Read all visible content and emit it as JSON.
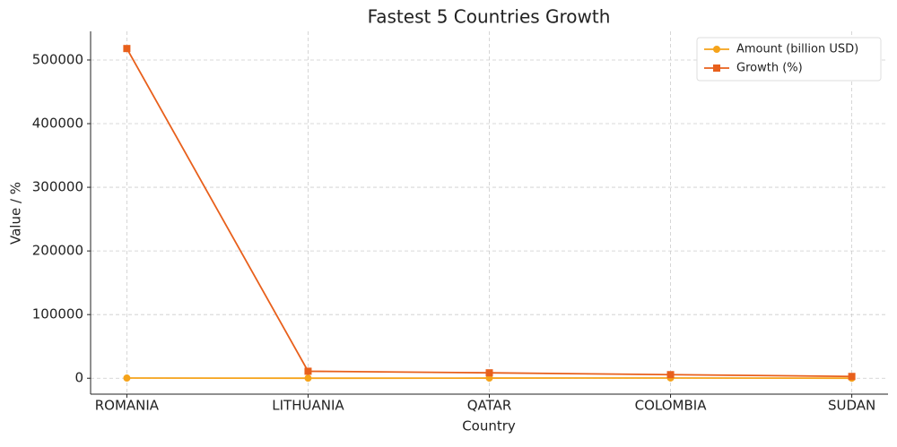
{
  "chart_data": {
    "type": "line",
    "title": "Fastest 5 Countries Growth",
    "x_label": "Country",
    "y_label": "Value / %",
    "categories": [
      "ROMANIA",
      "LITHUANIA",
      "QATAR",
      "COLOMBIA",
      "SUDAN"
    ],
    "series": [
      {
        "name": "Amount (billion USD)",
        "color": "#f5a31a",
        "marker": "circle",
        "values": [
          300,
          70,
          220,
          360,
          35
        ]
      },
      {
        "name": "Growth (%)",
        "color": "#e8601c",
        "marker": "square",
        "values": [
          518000,
          11000,
          8500,
          5600,
          2800
        ]
      }
    ],
    "ylim": [
      -25000,
      545000
    ],
    "yticks": [
      0,
      100000,
      200000,
      300000,
      400000,
      500000
    ],
    "grid": true,
    "legend": "upper-right"
  }
}
